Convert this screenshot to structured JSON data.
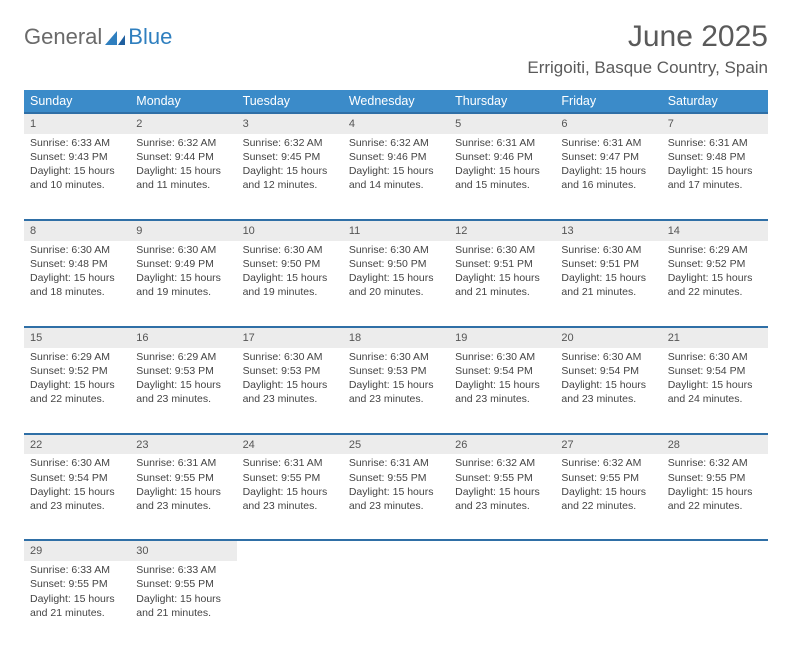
{
  "logo": {
    "word1": "General",
    "word2": "Blue"
  },
  "title": "June 2025",
  "location": "Errigoiti, Basque Country, Spain",
  "theme": {
    "header_bg": "#3b8bc9",
    "header_text": "#ffffff",
    "rule_color": "#2f6fa6",
    "daynum_bg": "#ececec",
    "text_color": "#444444",
    "logo_gray": "#6a6a6a",
    "logo_blue": "#2f7fbf"
  },
  "columns": [
    "Sunday",
    "Monday",
    "Tuesday",
    "Wednesday",
    "Thursday",
    "Friday",
    "Saturday"
  ],
  "weeks": [
    [
      {
        "n": "1",
        "sr": "Sunrise: 6:33 AM",
        "ss": "Sunset: 9:43 PM",
        "d1": "Daylight: 15 hours",
        "d2": "and 10 minutes."
      },
      {
        "n": "2",
        "sr": "Sunrise: 6:32 AM",
        "ss": "Sunset: 9:44 PM",
        "d1": "Daylight: 15 hours",
        "d2": "and 11 minutes."
      },
      {
        "n": "3",
        "sr": "Sunrise: 6:32 AM",
        "ss": "Sunset: 9:45 PM",
        "d1": "Daylight: 15 hours",
        "d2": "and 12 minutes."
      },
      {
        "n": "4",
        "sr": "Sunrise: 6:32 AM",
        "ss": "Sunset: 9:46 PM",
        "d1": "Daylight: 15 hours",
        "d2": "and 14 minutes."
      },
      {
        "n": "5",
        "sr": "Sunrise: 6:31 AM",
        "ss": "Sunset: 9:46 PM",
        "d1": "Daylight: 15 hours",
        "d2": "and 15 minutes."
      },
      {
        "n": "6",
        "sr": "Sunrise: 6:31 AM",
        "ss": "Sunset: 9:47 PM",
        "d1": "Daylight: 15 hours",
        "d2": "and 16 minutes."
      },
      {
        "n": "7",
        "sr": "Sunrise: 6:31 AM",
        "ss": "Sunset: 9:48 PM",
        "d1": "Daylight: 15 hours",
        "d2": "and 17 minutes."
      }
    ],
    [
      {
        "n": "8",
        "sr": "Sunrise: 6:30 AM",
        "ss": "Sunset: 9:48 PM",
        "d1": "Daylight: 15 hours",
        "d2": "and 18 minutes."
      },
      {
        "n": "9",
        "sr": "Sunrise: 6:30 AM",
        "ss": "Sunset: 9:49 PM",
        "d1": "Daylight: 15 hours",
        "d2": "and 19 minutes."
      },
      {
        "n": "10",
        "sr": "Sunrise: 6:30 AM",
        "ss": "Sunset: 9:50 PM",
        "d1": "Daylight: 15 hours",
        "d2": "and 19 minutes."
      },
      {
        "n": "11",
        "sr": "Sunrise: 6:30 AM",
        "ss": "Sunset: 9:50 PM",
        "d1": "Daylight: 15 hours",
        "d2": "and 20 minutes."
      },
      {
        "n": "12",
        "sr": "Sunrise: 6:30 AM",
        "ss": "Sunset: 9:51 PM",
        "d1": "Daylight: 15 hours",
        "d2": "and 21 minutes."
      },
      {
        "n": "13",
        "sr": "Sunrise: 6:30 AM",
        "ss": "Sunset: 9:51 PM",
        "d1": "Daylight: 15 hours",
        "d2": "and 21 minutes."
      },
      {
        "n": "14",
        "sr": "Sunrise: 6:29 AM",
        "ss": "Sunset: 9:52 PM",
        "d1": "Daylight: 15 hours",
        "d2": "and 22 minutes."
      }
    ],
    [
      {
        "n": "15",
        "sr": "Sunrise: 6:29 AM",
        "ss": "Sunset: 9:52 PM",
        "d1": "Daylight: 15 hours",
        "d2": "and 22 minutes."
      },
      {
        "n": "16",
        "sr": "Sunrise: 6:29 AM",
        "ss": "Sunset: 9:53 PM",
        "d1": "Daylight: 15 hours",
        "d2": "and 23 minutes."
      },
      {
        "n": "17",
        "sr": "Sunrise: 6:30 AM",
        "ss": "Sunset: 9:53 PM",
        "d1": "Daylight: 15 hours",
        "d2": "and 23 minutes."
      },
      {
        "n": "18",
        "sr": "Sunrise: 6:30 AM",
        "ss": "Sunset: 9:53 PM",
        "d1": "Daylight: 15 hours",
        "d2": "and 23 minutes."
      },
      {
        "n": "19",
        "sr": "Sunrise: 6:30 AM",
        "ss": "Sunset: 9:54 PM",
        "d1": "Daylight: 15 hours",
        "d2": "and 23 minutes."
      },
      {
        "n": "20",
        "sr": "Sunrise: 6:30 AM",
        "ss": "Sunset: 9:54 PM",
        "d1": "Daylight: 15 hours",
        "d2": "and 23 minutes."
      },
      {
        "n": "21",
        "sr": "Sunrise: 6:30 AM",
        "ss": "Sunset: 9:54 PM",
        "d1": "Daylight: 15 hours",
        "d2": "and 24 minutes."
      }
    ],
    [
      {
        "n": "22",
        "sr": "Sunrise: 6:30 AM",
        "ss": "Sunset: 9:54 PM",
        "d1": "Daylight: 15 hours",
        "d2": "and 23 minutes."
      },
      {
        "n": "23",
        "sr": "Sunrise: 6:31 AM",
        "ss": "Sunset: 9:55 PM",
        "d1": "Daylight: 15 hours",
        "d2": "and 23 minutes."
      },
      {
        "n": "24",
        "sr": "Sunrise: 6:31 AM",
        "ss": "Sunset: 9:55 PM",
        "d1": "Daylight: 15 hours",
        "d2": "and 23 minutes."
      },
      {
        "n": "25",
        "sr": "Sunrise: 6:31 AM",
        "ss": "Sunset: 9:55 PM",
        "d1": "Daylight: 15 hours",
        "d2": "and 23 minutes."
      },
      {
        "n": "26",
        "sr": "Sunrise: 6:32 AM",
        "ss": "Sunset: 9:55 PM",
        "d1": "Daylight: 15 hours",
        "d2": "and 23 minutes."
      },
      {
        "n": "27",
        "sr": "Sunrise: 6:32 AM",
        "ss": "Sunset: 9:55 PM",
        "d1": "Daylight: 15 hours",
        "d2": "and 22 minutes."
      },
      {
        "n": "28",
        "sr": "Sunrise: 6:32 AM",
        "ss": "Sunset: 9:55 PM",
        "d1": "Daylight: 15 hours",
        "d2": "and 22 minutes."
      }
    ],
    [
      {
        "n": "29",
        "sr": "Sunrise: 6:33 AM",
        "ss": "Sunset: 9:55 PM",
        "d1": "Daylight: 15 hours",
        "d2": "and 21 minutes."
      },
      {
        "n": "30",
        "sr": "Sunrise: 6:33 AM",
        "ss": "Sunset: 9:55 PM",
        "d1": "Daylight: 15 hours",
        "d2": "and 21 minutes."
      },
      null,
      null,
      null,
      null,
      null
    ]
  ]
}
